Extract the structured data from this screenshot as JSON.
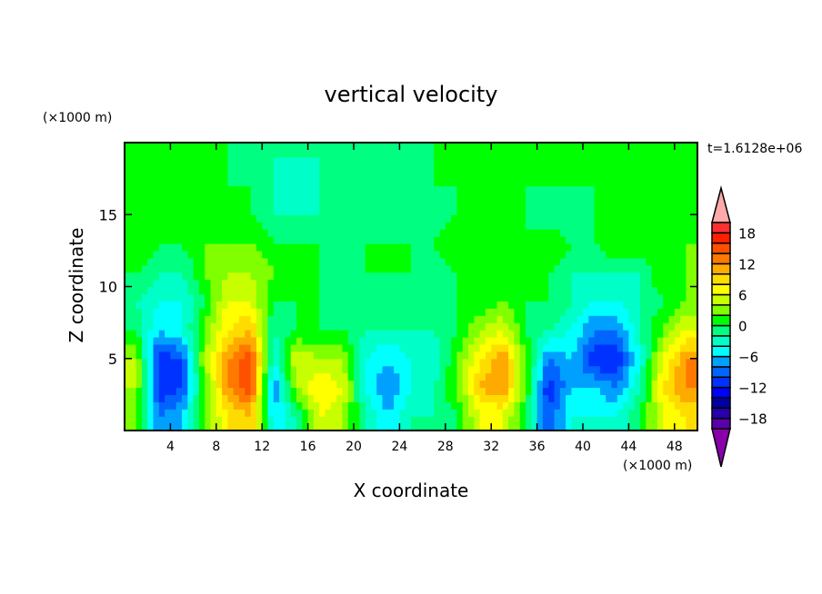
{
  "chart_data": {
    "type": "heatmap",
    "style": "filled contour",
    "title": "vertical velocity",
    "xlabel": "X coordinate",
    "ylabel": "Z coordinate",
    "x_unit": "(×1000 m)",
    "y_unit": "(×1000 m)",
    "time_label": "t=1.6128e+06",
    "xlim": [
      0,
      50
    ],
    "ylim": [
      0,
      20
    ],
    "xticks": [
      4,
      8,
      12,
      16,
      20,
      24,
      28,
      32,
      36,
      40,
      44,
      48
    ],
    "yticks": [
      5,
      10,
      15
    ],
    "colorbar": {
      "levels": [
        -20,
        -18,
        -16,
        -14,
        -12,
        -10,
        -8,
        -6,
        -4,
        -2,
        0,
        2,
        4,
        6,
        8,
        10,
        12,
        14,
        16,
        18,
        20
      ],
      "tick_labels": [
        18,
        12,
        6,
        0,
        -6,
        -12,
        -18
      ],
      "colors": [
        "#5a00aa",
        "#2800aa",
        "#0000a0",
        "#0000ff",
        "#0032ff",
        "#0064ff",
        "#00a0ff",
        "#00ffff",
        "#00ffc8",
        "#00ff80",
        "#00ff00",
        "#80ff00",
        "#c8ff00",
        "#ffff00",
        "#ffdc00",
        "#ffaa00",
        "#ff7800",
        "#ff5000",
        "#ff2000",
        "#ff3030"
      ],
      "over_color": "#ffaaaa",
      "under_color": "#8800aa"
    },
    "grid_x": [
      1,
      3,
      5,
      7,
      9,
      11,
      13,
      15,
      17,
      19,
      21,
      23,
      25,
      27,
      29,
      31,
      33,
      35,
      37,
      39,
      41,
      43,
      45,
      47,
      49
    ],
    "grid_z": [
      1,
      3,
      5,
      7,
      9,
      11,
      13,
      15,
      17,
      19
    ],
    "values": [
      [
        2,
        -8,
        -6,
        2,
        8,
        10,
        -6,
        -2,
        6,
        4,
        -2,
        -6,
        -2,
        -2,
        0,
        6,
        6,
        0,
        -10,
        -4,
        -4,
        -4,
        0,
        6,
        8
      ],
      [
        4,
        -12,
        -10,
        2,
        12,
        16,
        -8,
        4,
        8,
        6,
        -4,
        -8,
        -4,
        -2,
        2,
        10,
        12,
        2,
        -12,
        -6,
        -6,
        -8,
        -2,
        8,
        12
      ],
      [
        4,
        -12,
        -10,
        4,
        12,
        16,
        -4,
        6,
        4,
        4,
        -4,
        -6,
        -4,
        -4,
        2,
        8,
        12,
        2,
        -8,
        -6,
        -12,
        -12,
        -4,
        6,
        12
      ],
      [
        0,
        -6,
        -4,
        2,
        8,
        10,
        -2,
        0,
        0,
        0,
        -2,
        -2,
        -2,
        -2,
        0,
        4,
        6,
        0,
        -2,
        -4,
        -8,
        -8,
        -2,
        2,
        6
      ],
      [
        -2,
        -4,
        -4,
        0,
        6,
        6,
        0,
        0,
        0,
        -2,
        -2,
        0,
        -2,
        -2,
        0,
        0,
        2,
        0,
        0,
        -2,
        -4,
        -4,
        -2,
        0,
        2
      ],
      [
        0,
        -2,
        -2,
        2,
        4,
        4,
        2,
        2,
        0,
        -2,
        0,
        0,
        0,
        -2,
        0,
        0,
        2,
        0,
        0,
        -2,
        -2,
        -2,
        -2,
        2,
        2
      ],
      [
        2,
        0,
        0,
        2,
        2,
        2,
        0,
        0,
        0,
        0,
        0,
        0,
        0,
        0,
        2,
        2,
        0,
        0,
        2,
        0,
        0,
        2,
        2,
        0,
        2
      ],
      [
        0,
        0,
        0,
        0,
        0,
        0,
        -2,
        -2,
        -2,
        -2,
        -2,
        -2,
        -2,
        -2,
        0,
        0,
        0,
        0,
        -2,
        -2,
        0,
        0,
        2,
        0,
        0
      ],
      [
        0,
        0,
        0,
        0,
        0,
        0,
        -2,
        -4,
        -2,
        -2,
        -2,
        -2,
        -2,
        0,
        0,
        0,
        0,
        0,
        0,
        0,
        0,
        0,
        0,
        0,
        0
      ],
      [
        0,
        0,
        0,
        0,
        0,
        -2,
        -2,
        -2,
        -2,
        -2,
        0,
        -2,
        -2,
        0,
        0,
        0,
        0,
        0,
        0,
        0,
        0,
        0,
        0,
        0,
        0
      ]
    ]
  }
}
